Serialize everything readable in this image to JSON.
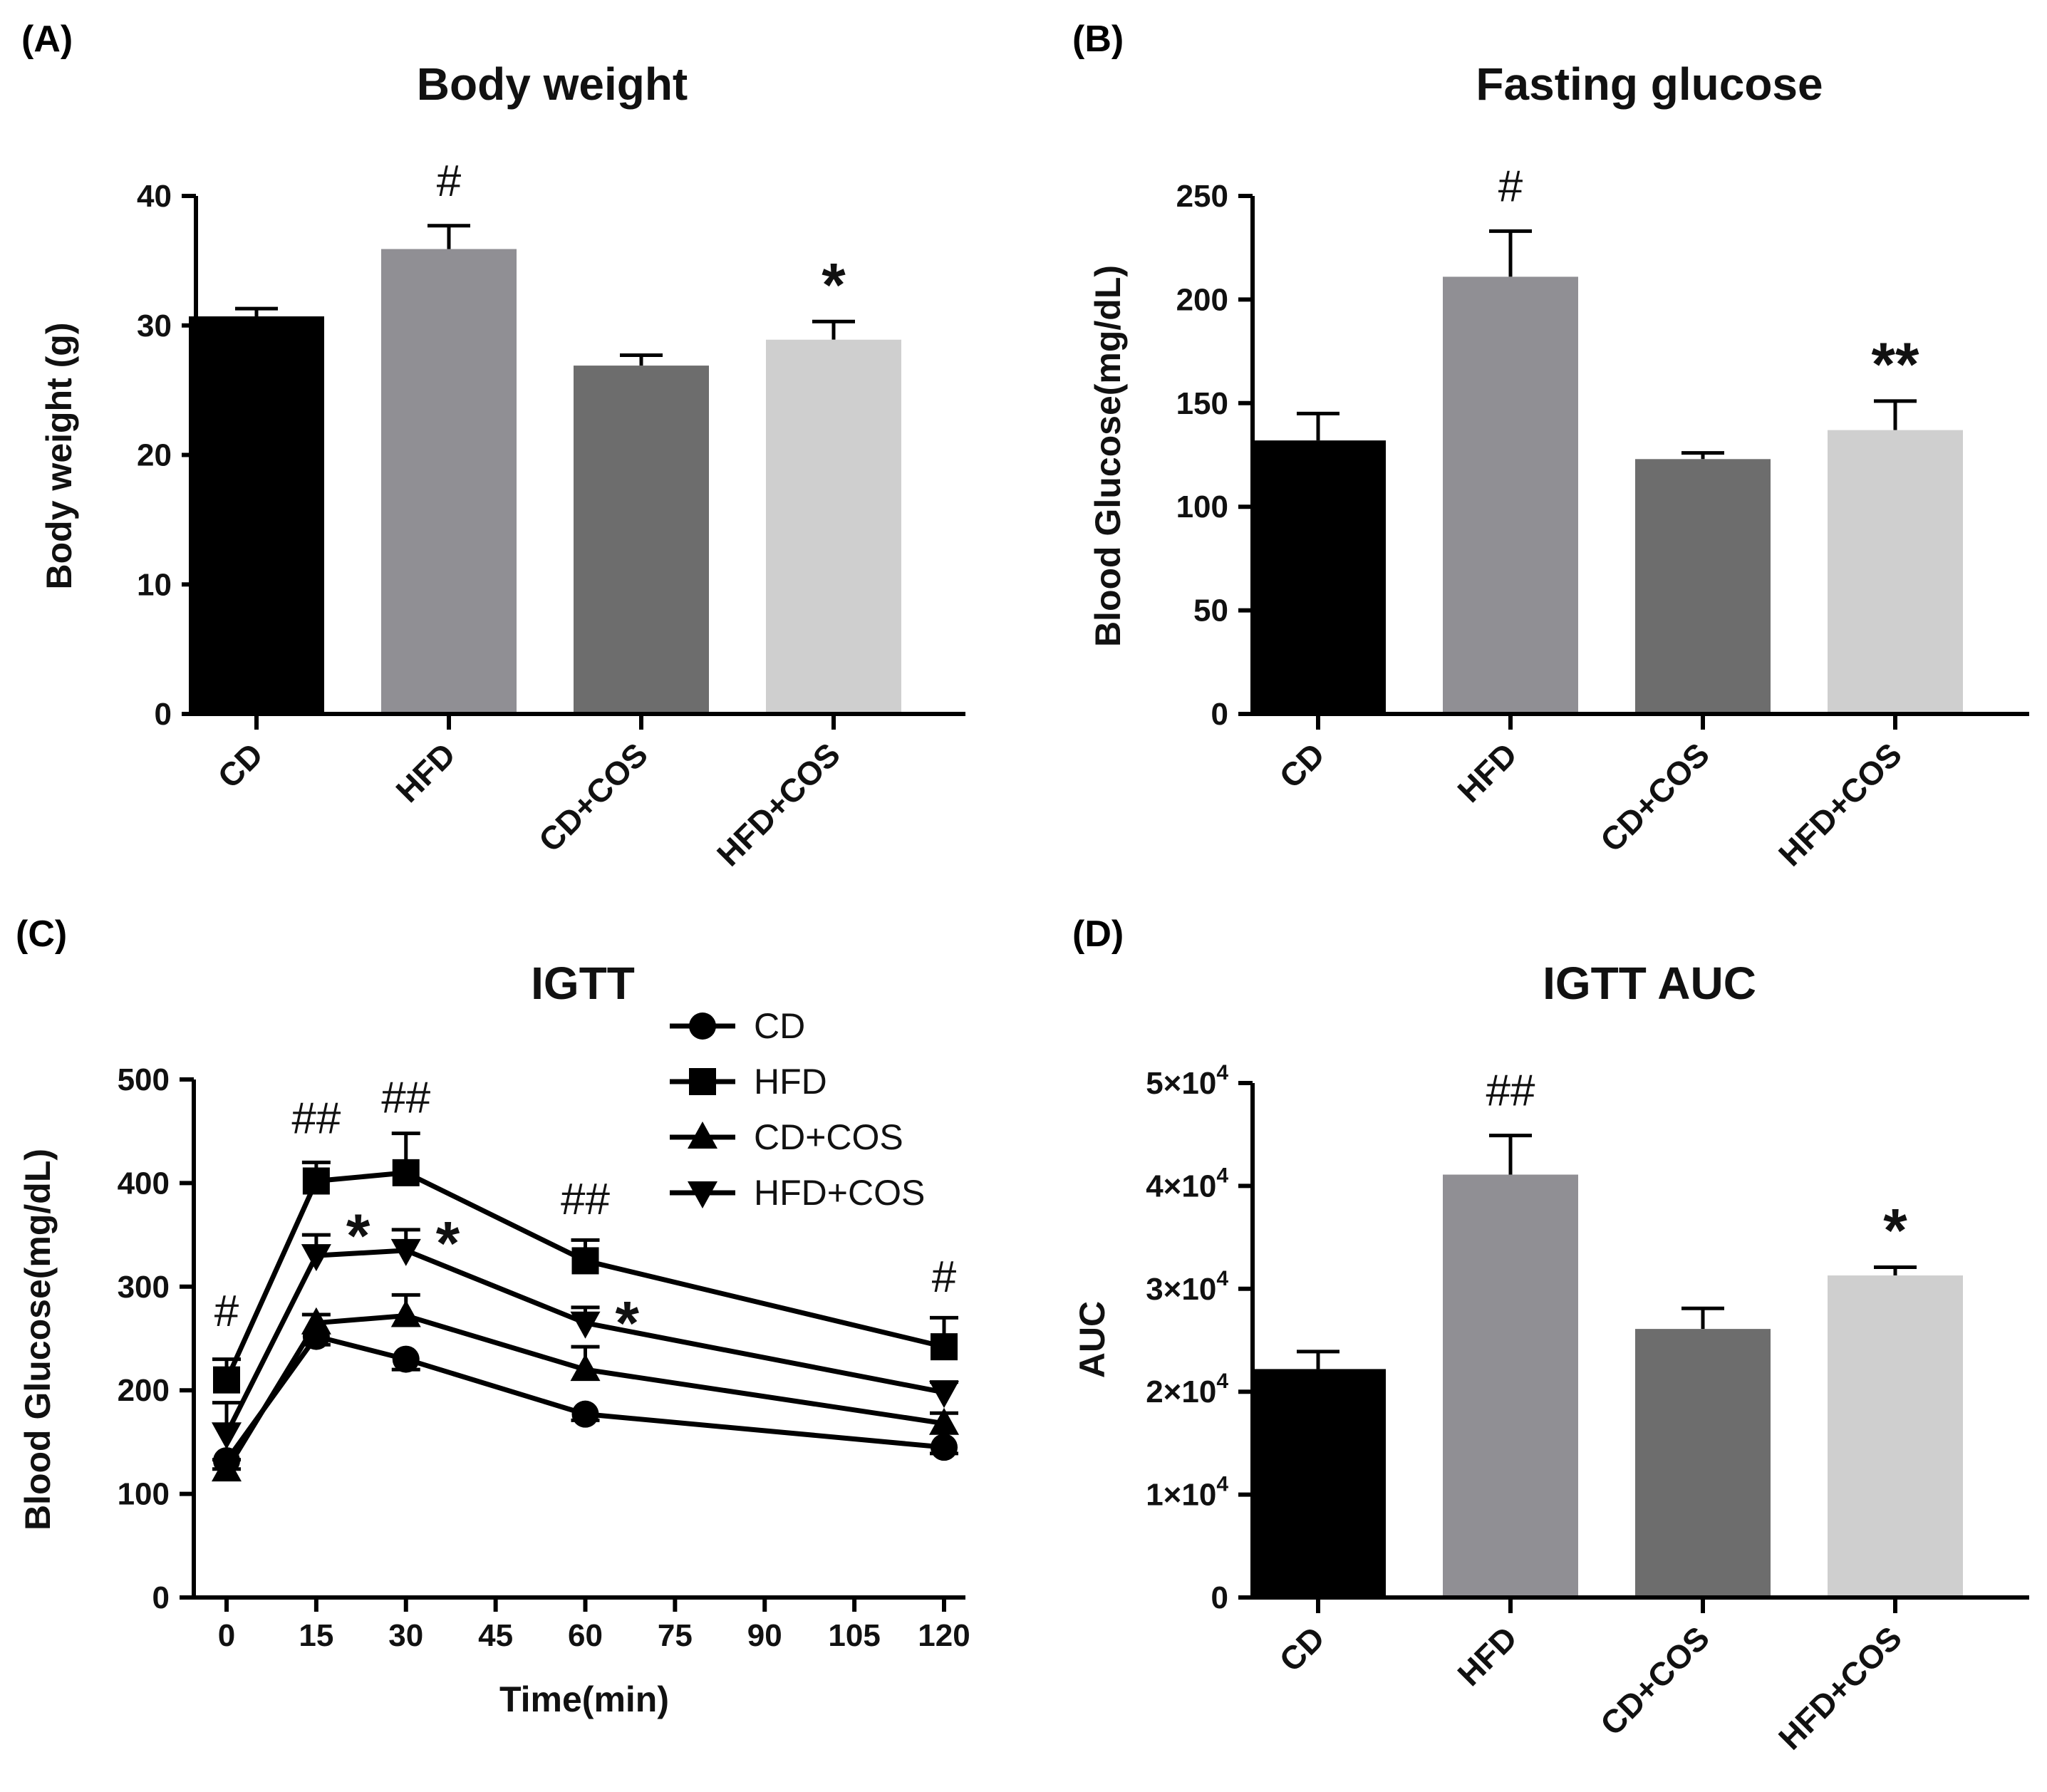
{
  "chart_data": [
    {
      "panel": "(A)",
      "type": "bar",
      "title": "Body weight",
      "ylabel": "Body weight (g)",
      "ylim": [
        0,
        40
      ],
      "yticks": [
        0,
        10,
        20,
        30,
        40
      ],
      "ytick_labels": [
        "0",
        "10",
        "20",
        "30",
        "40"
      ],
      "categories": [
        "CD",
        "HFD",
        "CD+COS",
        "HFD+COS"
      ],
      "values": [
        30.7,
        35.9,
        26.9,
        28.9
      ],
      "errors": [
        0.6,
        1.8,
        0.8,
        1.4
      ],
      "colors": [
        "#000000",
        "#908f94",
        "#6d6d6d",
        "#cfcfcf"
      ],
      "significance": [
        "",
        "#",
        "",
        "*"
      ]
    },
    {
      "panel": "(B)",
      "type": "bar",
      "title": "Fasting glucose",
      "ylabel": "Blood Glucose(mg/dL)",
      "ylim": [
        0,
        250
      ],
      "yticks": [
        0,
        50,
        100,
        150,
        200,
        250
      ],
      "ytick_labels": [
        "0",
        "50",
        "100",
        "150",
        "200",
        "250"
      ],
      "categories": [
        "CD",
        "HFD",
        "CD+COS",
        "HFD+COS"
      ],
      "values": [
        132,
        211,
        123,
        137
      ],
      "errors": [
        13,
        22,
        3,
        14
      ],
      "colors": [
        "#000000",
        "#908f94",
        "#6d6d6d",
        "#cfcfcf"
      ],
      "significance": [
        "",
        "#",
        "",
        "**"
      ]
    },
    {
      "panel": "(C)",
      "type": "line",
      "title": "IGTT",
      "xlabel": "Time(min)",
      "ylabel": "Blood Glucose(mg/dL)",
      "xlim": [
        0,
        120
      ],
      "ylim": [
        0,
        500
      ],
      "xticks": [
        0,
        15,
        30,
        45,
        60,
        75,
        90,
        105,
        120
      ],
      "xtick_labels": [
        "0",
        "15",
        "30",
        "45",
        "60",
        "75",
        "90",
        "105",
        "120"
      ],
      "yticks": [
        0,
        100,
        200,
        300,
        400,
        500
      ],
      "ytick_labels": [
        "0",
        "100",
        "200",
        "300",
        "400",
        "500"
      ],
      "x": [
        0,
        15,
        30,
        60,
        120
      ],
      "series": [
        {
          "name": "CD",
          "marker": "circle",
          "values": [
            132,
            252,
            230,
            177,
            145
          ],
          "errors": [
            8,
            8,
            10,
            6,
            6
          ]
        },
        {
          "name": "HFD",
          "marker": "square",
          "values": [
            210,
            402,
            410,
            325,
            242
          ],
          "errors": [
            20,
            18,
            38,
            20,
            28
          ]
        },
        {
          "name": "CD+COS",
          "marker": "triangle-up",
          "values": [
            123,
            265,
            272,
            220,
            168
          ],
          "errors": [
            10,
            8,
            20,
            22,
            10
          ]
        },
        {
          "name": "HFD+COS",
          "marker": "triangle-down",
          "values": [
            158,
            330,
            335,
            265,
            198
          ],
          "errors": [
            30,
            20,
            20,
            15,
            10
          ]
        }
      ],
      "annotations": [
        {
          "text": "#",
          "x": 0,
          "y": 262
        },
        {
          "text": "##",
          "x": 15,
          "y": 448
        },
        {
          "text": "##",
          "x": 30,
          "y": 468
        },
        {
          "text": "##",
          "x": 60,
          "y": 370
        },
        {
          "text": "#",
          "x": 120,
          "y": 295
        },
        {
          "text": "*",
          "x": 22,
          "y": 352
        },
        {
          "text": "*",
          "x": 37,
          "y": 345
        },
        {
          "text": "*",
          "x": 67,
          "y": 268
        }
      ],
      "legend": "top-right"
    },
    {
      "panel": "(D)",
      "type": "bar",
      "title": "IGTT AUC",
      "ylabel": "AUC",
      "ylim": [
        0,
        50000
      ],
      "yticks": [
        0,
        10000,
        20000,
        30000,
        40000,
        50000
      ],
      "ytick_labels": [
        "0",
        "1×10",
        "2×10",
        "3×10",
        "4×10",
        "5×10"
      ],
      "ytick_exponent": "4",
      "categories": [
        "CD",
        "HFD",
        "CD+COS",
        "HFD+COS"
      ],
      "values": [
        22200,
        41100,
        26100,
        31300
      ],
      "errors": [
        1700,
        3800,
        2000,
        800
      ],
      "colors": [
        "#000000",
        "#908f94",
        "#6d6d6d",
        "#cfcfcf"
      ],
      "significance": [
        "",
        "##",
        "",
        "*"
      ]
    }
  ]
}
